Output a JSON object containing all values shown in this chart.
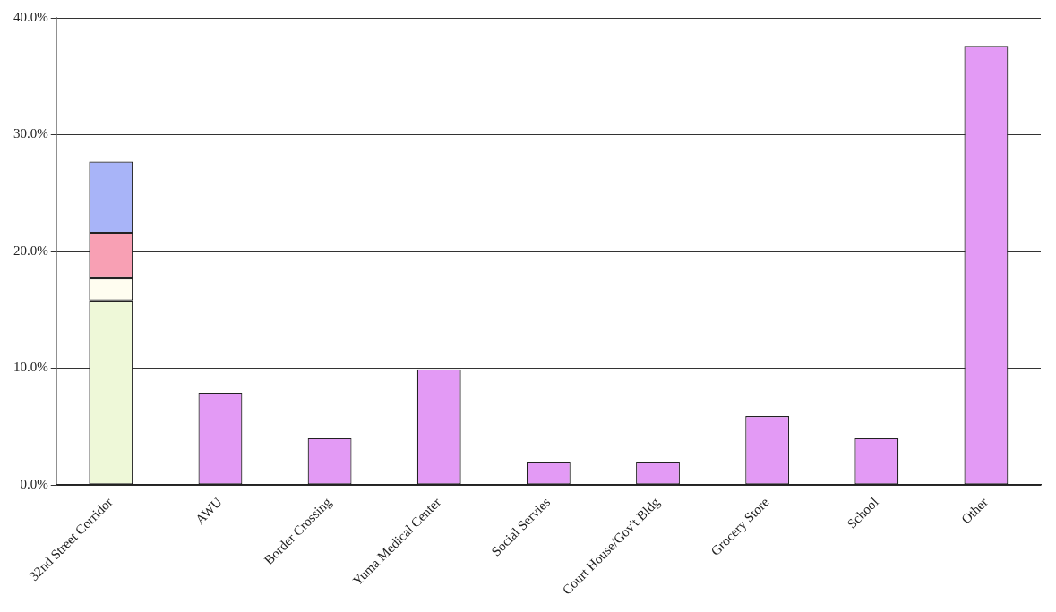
{
  "chart_data": {
    "type": "bar",
    "stacked": true,
    "categories": [
      "32nd Street Corridor",
      "AWU",
      "Border Crossing",
      "Yuma Medical Center",
      "Social Servies",
      "Court House/Gov't Bldg",
      "Grocery Store",
      "School",
      "Other"
    ],
    "series": [
      {
        "color": "#eef8d8",
        "values": [
          15.8,
          null,
          null,
          null,
          null,
          null,
          null,
          null,
          null
        ]
      },
      {
        "color": "#fffdf0",
        "values": [
          1.9,
          null,
          null,
          null,
          null,
          null,
          null,
          null,
          null
        ]
      },
      {
        "color": "#f8a0b4",
        "values": [
          3.9,
          null,
          null,
          null,
          null,
          null,
          null,
          null,
          null
        ]
      },
      {
        "color": "#a8b4f8",
        "values": [
          6.1,
          null,
          null,
          null,
          null,
          null,
          null,
          null,
          null
        ]
      },
      {
        "color": "#e39af5",
        "values": [
          null,
          7.9,
          4.0,
          9.9,
          2.0,
          2.0,
          5.9,
          4.0,
          37.6
        ]
      }
    ],
    "ylim": [
      0,
      40
    ],
    "yticks": [
      {
        "value": 0,
        "label": "0.0%"
      },
      {
        "value": 10,
        "label": "10.0%"
      },
      {
        "value": 20,
        "label": "20.0%"
      },
      {
        "value": 30,
        "label": "30.0%"
      },
      {
        "value": 40,
        "label": "40.0%"
      }
    ],
    "grid": "y",
    "legend": false
  }
}
